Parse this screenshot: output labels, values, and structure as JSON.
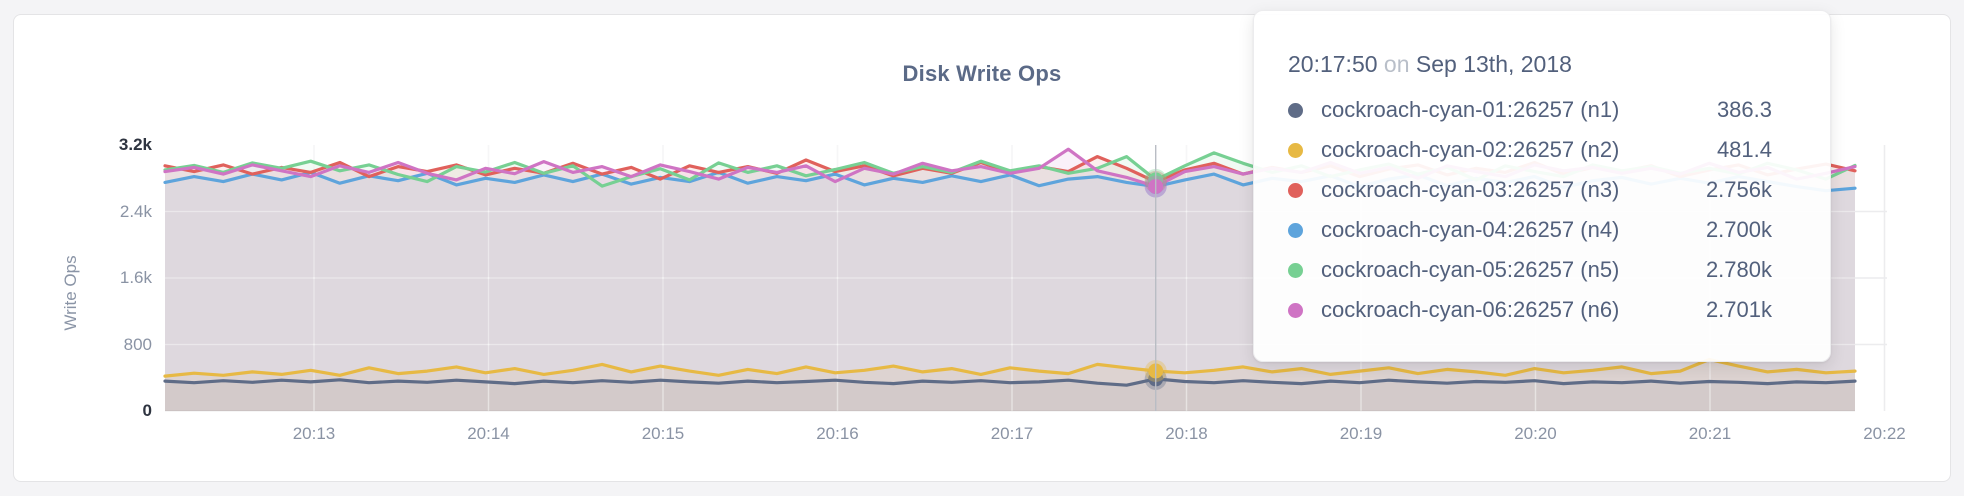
{
  "chart": {
    "title": "Disk Write Ops",
    "y_axis_label": "Write Ops"
  },
  "tooltip": {
    "time": "20:17:50",
    "connector": "on",
    "date": "Sep 13th, 2018",
    "rows": [
      {
        "label": "cockroach-cyan-01:26257 (n1)",
        "value": "386.3",
        "color": "#5F6C87"
      },
      {
        "label": "cockroach-cyan-02:26257 (n2)",
        "value": "481.4",
        "color": "#E7B944"
      },
      {
        "label": "cockroach-cyan-03:26257 (n3)",
        "value": "2.756k",
        "color": "#E0615C"
      },
      {
        "label": "cockroach-cyan-04:26257 (n4)",
        "value": "2.700k",
        "color": "#5EA4DC"
      },
      {
        "label": "cockroach-cyan-05:26257 (n5)",
        "value": "2.780k",
        "color": "#77D093"
      },
      {
        "label": "cockroach-cyan-06:26257 (n6)",
        "value": "2.701k",
        "color": "#CF74C4"
      }
    ]
  },
  "chart_data": {
    "type": "line",
    "title": "Disk Write Ops",
    "ylabel": "Write Ops",
    "ylim": [
      0,
      3200
    ],
    "grid": true,
    "legend": "tooltip-only",
    "y_ticks": [
      {
        "label": "3.2k",
        "value": 3200,
        "emphasis": true
      },
      {
        "label": "2.4k",
        "value": 2400,
        "emphasis": false
      },
      {
        "label": "1.6k",
        "value": 1600,
        "emphasis": false
      },
      {
        "label": "800",
        "value": 800,
        "emphasis": false
      },
      {
        "label": "0",
        "value": 0,
        "emphasis": true
      }
    ],
    "x_ticks": [
      "20:13",
      "20:14",
      "20:15",
      "20:16",
      "20:17",
      "20:18",
      "20:19",
      "20:20",
      "20:21",
      "20:22"
    ],
    "x_start_time": "20:12:10",
    "x_interval_seconds": 10,
    "hover_index": 34,
    "hover_time": "20:17:50",
    "series": [
      {
        "name": "cockroach-cyan-01:26257 (n1)",
        "color": "#5F6C87",
        "values": [
          360,
          340,
          365,
          345,
          370,
          350,
          375,
          340,
          360,
          345,
          370,
          350,
          330,
          360,
          340,
          365,
          345,
          370,
          350,
          335,
          360,
          340,
          355,
          370,
          345,
          330,
          360,
          345,
          365,
          340,
          350,
          370,
          335,
          310,
          386.3,
          355,
          340,
          365,
          345,
          330,
          360,
          340,
          370,
          350,
          335,
          355,
          345,
          365,
          330,
          350,
          340,
          360,
          335,
          355,
          345,
          330,
          350,
          340,
          360
        ]
      },
      {
        "name": "cockroach-cyan-02:26257 (n2)",
        "color": "#E7B944",
        "values": [
          420,
          455,
          430,
          470,
          440,
          490,
          430,
          520,
          450,
          480,
          530,
          460,
          510,
          440,
          490,
          560,
          470,
          540,
          480,
          430,
          500,
          450,
          530,
          460,
          490,
          540,
          470,
          510,
          440,
          520,
          480,
          450,
          560,
          520,
          481.4,
          460,
          490,
          530,
          470,
          510,
          440,
          480,
          520,
          450,
          500,
          470,
          430,
          510,
          460,
          490,
          530,
          450,
          480,
          620,
          540,
          470,
          500,
          460,
          480
        ]
      },
      {
        "name": "cockroach-cyan-03:26257 (n3)",
        "color": "#E0615C",
        "values": [
          2950,
          2880,
          2960,
          2850,
          2930,
          2870,
          2990,
          2820,
          2940,
          2880,
          2960,
          2840,
          2920,
          2860,
          2980,
          2850,
          2930,
          2790,
          2950,
          2870,
          2940,
          2860,
          3020,
          2880,
          2950,
          2830,
          2920,
          2860,
          2990,
          2870,
          2940,
          2880,
          3060,
          2920,
          2756,
          2900,
          2980,
          2850,
          2930,
          2870,
          2950,
          2820,
          2910,
          2960,
          2840,
          2920,
          2870,
          2990,
          2850,
          2930,
          2880,
          2950,
          2820,
          2900,
          2960,
          2840,
          2910,
          2970,
          2890
        ]
      },
      {
        "name": "cockroach-cyan-04:26257 (n4)",
        "color": "#5EA4DC",
        "values": [
          2750,
          2820,
          2760,
          2850,
          2780,
          2870,
          2740,
          2830,
          2770,
          2860,
          2720,
          2800,
          2750,
          2840,
          2760,
          2850,
          2730,
          2810,
          2760,
          2870,
          2740,
          2820,
          2770,
          2850,
          2720,
          2800,
          2750,
          2830,
          2760,
          2840,
          2710,
          2790,
          2820,
          2750,
          2700,
          2780,
          2850,
          2720,
          2800,
          2760,
          2830,
          2700,
          2790,
          2840,
          2710,
          2800,
          2750,
          2820,
          2690,
          2770,
          2810,
          2730,
          2800,
          2740,
          2820,
          2760,
          2700,
          2650,
          2680
        ]
      },
      {
        "name": "cockroach-cyan-05:26257 (n5)",
        "color": "#77D093",
        "values": [
          2900,
          2955,
          2870,
          2985,
          2920,
          3005,
          2890,
          2960,
          2845,
          2760,
          2940,
          2875,
          2990,
          2860,
          2950,
          2705,
          2820,
          2915,
          2780,
          2985,
          2870,
          2950,
          2830,
          2905,
          2990,
          2860,
          2940,
          2870,
          3005,
          2890,
          2950,
          2860,
          2920,
          3060,
          2780,
          2950,
          3105,
          2980,
          2870,
          2950,
          2820,
          2900,
          2970,
          2850,
          2930,
          2780,
          2950,
          2880,
          2820,
          2960,
          2890,
          2940,
          2860,
          2920,
          2850,
          2980,
          2900,
          2790,
          2955
        ]
      },
      {
        "name": "cockroach-cyan-06:26257 (n6)",
        "color": "#CF74C4",
        "values": [
          2880,
          2930,
          2850,
          2960,
          2890,
          2820,
          2950,
          2870,
          2990,
          2860,
          2780,
          2920,
          2855,
          3000,
          2870,
          2940,
          2820,
          2960,
          2880,
          2790,
          2930,
          2870,
          2950,
          2760,
          2920,
          2850,
          2980,
          2890,
          2940,
          2860,
          2920,
          3150,
          2890,
          2810,
          2701,
          2880,
          2940,
          2850,
          2920,
          2870,
          2990,
          2860,
          2930,
          2800,
          2950,
          2880,
          2820,
          2960,
          2890,
          2930,
          2860,
          2920,
          2850,
          2980,
          2870,
          2930,
          2790,
          2860,
          2940
        ]
      }
    ]
  }
}
